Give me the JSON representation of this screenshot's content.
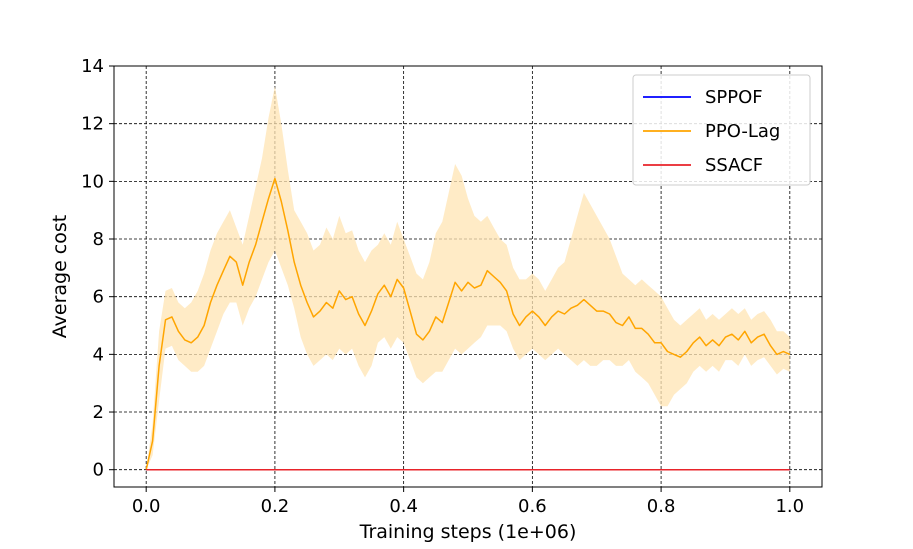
{
  "chart_data": {
    "type": "line",
    "title": "",
    "xlabel": "Training steps (1e+06)",
    "ylabel": "Average cost",
    "xlim": [
      -0.05,
      1.05
    ],
    "ylim": [
      -0.6,
      14.0
    ],
    "grid": true,
    "legend_position": "top-right",
    "x_ticks": [
      0.0,
      0.2,
      0.4,
      0.6,
      0.8,
      1.0
    ],
    "x_tick_labels": [
      "0.0",
      "0.2",
      "0.4",
      "0.6",
      "0.8",
      "1.0"
    ],
    "y_ticks": [
      0,
      2,
      4,
      6,
      8,
      10,
      12,
      14
    ],
    "y_tick_labels": [
      "0",
      "2",
      "4",
      "6",
      "8",
      "10",
      "12",
      "14"
    ],
    "series": [
      {
        "name": "SPPOF",
        "color": "#0000ff",
        "x": [
          0.0,
          1.0
        ],
        "y": [
          0,
          0
        ]
      },
      {
        "name": "PPO-Lag",
        "color": "#ffa500",
        "band_color": "#ffe4b3",
        "x": [
          0.0,
          0.01,
          0.02,
          0.03,
          0.04,
          0.05,
          0.06,
          0.07,
          0.08,
          0.09,
          0.1,
          0.11,
          0.12,
          0.13,
          0.14,
          0.15,
          0.16,
          0.17,
          0.18,
          0.19,
          0.2,
          0.21,
          0.22,
          0.23,
          0.24,
          0.25,
          0.26,
          0.27,
          0.28,
          0.29,
          0.3,
          0.31,
          0.32,
          0.33,
          0.34,
          0.35,
          0.36,
          0.37,
          0.38,
          0.39,
          0.4,
          0.41,
          0.42,
          0.43,
          0.44,
          0.45,
          0.46,
          0.47,
          0.48,
          0.49,
          0.5,
          0.51,
          0.52,
          0.53,
          0.54,
          0.55,
          0.56,
          0.57,
          0.58,
          0.59,
          0.6,
          0.61,
          0.62,
          0.63,
          0.64,
          0.65,
          0.66,
          0.67,
          0.68,
          0.69,
          0.7,
          0.71,
          0.72,
          0.73,
          0.74,
          0.75,
          0.76,
          0.77,
          0.78,
          0.79,
          0.8,
          0.81,
          0.82,
          0.83,
          0.84,
          0.85,
          0.86,
          0.87,
          0.88,
          0.89,
          0.9,
          0.91,
          0.92,
          0.93,
          0.94,
          0.95,
          0.96,
          0.97,
          0.98,
          0.99,
          1.0
        ],
        "y": [
          0.0,
          1.0,
          3.6,
          5.2,
          5.3,
          4.8,
          4.5,
          4.4,
          4.6,
          5.0,
          5.8,
          6.4,
          6.9,
          7.4,
          7.2,
          6.4,
          7.2,
          7.8,
          8.6,
          9.4,
          10.1,
          9.3,
          8.3,
          7.2,
          6.4,
          5.8,
          5.3,
          5.5,
          5.8,
          5.6,
          6.2,
          5.9,
          6.0,
          5.4,
          5.0,
          5.5,
          6.1,
          6.4,
          6.0,
          6.6,
          6.3,
          5.5,
          4.7,
          4.5,
          4.8,
          5.3,
          5.1,
          5.8,
          6.5,
          6.2,
          6.5,
          6.3,
          6.4,
          6.9,
          6.7,
          6.5,
          6.2,
          5.4,
          5.0,
          5.3,
          5.5,
          5.3,
          5.0,
          5.3,
          5.5,
          5.4,
          5.6,
          5.7,
          5.9,
          5.7,
          5.5,
          5.5,
          5.4,
          5.1,
          5.0,
          5.3,
          4.9,
          4.9,
          4.7,
          4.4,
          4.4,
          4.1,
          4.0,
          3.9,
          4.1,
          4.4,
          4.6,
          4.3,
          4.5,
          4.3,
          4.6,
          4.7,
          4.5,
          4.8,
          4.4,
          4.6,
          4.7,
          4.3,
          4.0,
          4.1,
          4.0
        ],
        "y_upper": [
          0.0,
          1.6,
          4.8,
          6.2,
          6.3,
          5.8,
          5.6,
          5.8,
          6.2,
          6.8,
          7.6,
          8.2,
          8.6,
          9.0,
          8.4,
          7.8,
          8.8,
          9.8,
          10.8,
          12.2,
          13.3,
          12.0,
          10.4,
          9.0,
          8.6,
          8.2,
          7.6,
          7.8,
          8.4,
          8.0,
          8.8,
          8.2,
          8.3,
          7.6,
          7.2,
          7.6,
          7.8,
          8.2,
          7.8,
          8.6,
          8.0,
          7.4,
          6.8,
          6.6,
          7.2,
          8.2,
          8.6,
          9.6,
          10.6,
          10.2,
          9.4,
          8.8,
          8.6,
          8.8,
          8.4,
          8.0,
          7.8,
          7.0,
          6.6,
          6.6,
          6.8,
          6.6,
          6.2,
          6.6,
          7.0,
          7.2,
          8.0,
          8.8,
          9.6,
          9.2,
          8.8,
          8.4,
          8.0,
          7.4,
          6.8,
          6.6,
          6.4,
          6.6,
          6.4,
          6.2,
          6.0,
          5.6,
          5.2,
          5.0,
          5.2,
          5.4,
          5.6,
          5.2,
          5.4,
          5.2,
          5.4,
          5.6,
          5.4,
          5.6,
          5.2,
          5.4,
          5.5,
          5.2,
          4.8,
          4.8,
          4.6
        ],
        "y_lower": [
          0.0,
          0.5,
          2.4,
          4.2,
          4.3,
          3.8,
          3.6,
          3.4,
          3.4,
          3.6,
          4.2,
          4.8,
          5.4,
          5.8,
          5.8,
          5.0,
          5.6,
          6.0,
          6.6,
          7.2,
          7.6,
          7.0,
          6.4,
          5.6,
          4.6,
          4.0,
          3.6,
          3.8,
          4.0,
          3.8,
          4.2,
          4.0,
          4.2,
          3.6,
          3.2,
          3.6,
          4.4,
          4.6,
          4.2,
          4.6,
          4.4,
          3.8,
          3.2,
          3.0,
          3.2,
          3.4,
          3.4,
          3.8,
          4.2,
          4.0,
          4.2,
          4.4,
          4.6,
          5.0,
          5.0,
          5.0,
          4.8,
          4.2,
          3.8,
          4.0,
          4.2,
          4.0,
          3.8,
          4.0,
          4.2,
          4.0,
          3.8,
          3.6,
          3.8,
          3.6,
          3.6,
          3.8,
          3.8,
          3.6,
          3.6,
          3.8,
          3.4,
          3.2,
          3.0,
          2.6,
          2.2,
          2.2,
          2.6,
          2.8,
          3.0,
          3.4,
          3.6,
          3.4,
          3.6,
          3.4,
          3.8,
          3.8,
          3.6,
          4.0,
          3.6,
          3.8,
          3.9,
          3.6,
          3.3,
          3.5,
          3.4
        ]
      },
      {
        "name": "SSACF",
        "color": "#e8232a",
        "x": [
          0.0,
          1.0
        ],
        "y": [
          0,
          0
        ]
      }
    ]
  }
}
